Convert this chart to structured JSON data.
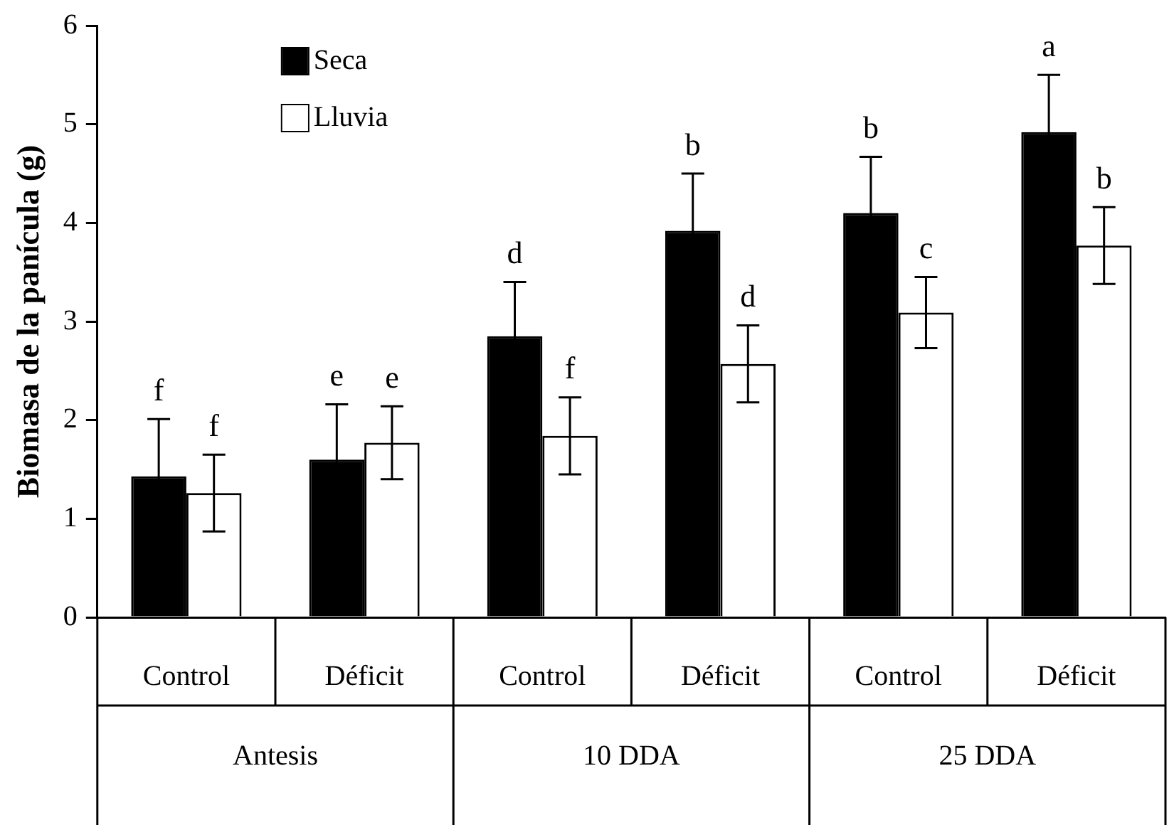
{
  "chart_data": {
    "type": "bar",
    "ylabel": "Biomasa de la panícula (g)",
    "categories": [
      "Control",
      "Déficit",
      "Control",
      "Déficit",
      "Control",
      "Déficit"
    ],
    "annotations": [
      "Antesis",
      "10 DDA",
      "25 DDA"
    ],
    "series": [
      {
        "name": "Seca",
        "color": "#000000",
        "values": [
          1.43,
          1.6,
          2.85,
          3.92,
          4.1,
          4.92
        ],
        "errors": [
          0.58,
          0.56,
          0.55,
          0.58,
          0.57,
          0.58
        ],
        "value_labels": [
          "f",
          "e",
          "d",
          "b",
          "b",
          "a"
        ]
      },
      {
        "name": "Lluvia",
        "color": "#ffffff",
        "values": [
          1.26,
          1.77,
          1.84,
          2.57,
          3.09,
          3.77
        ],
        "errors": [
          0.39,
          0.37,
          0.39,
          0.39,
          0.36,
          0.39
        ],
        "value_labels": [
          "f",
          "e",
          "f",
          "d",
          "c",
          "b"
        ]
      }
    ],
    "ylim": [
      0,
      6
    ],
    "yticks": [
      0,
      1,
      2,
      3,
      4,
      5,
      6
    ],
    "legend": "top left"
  }
}
